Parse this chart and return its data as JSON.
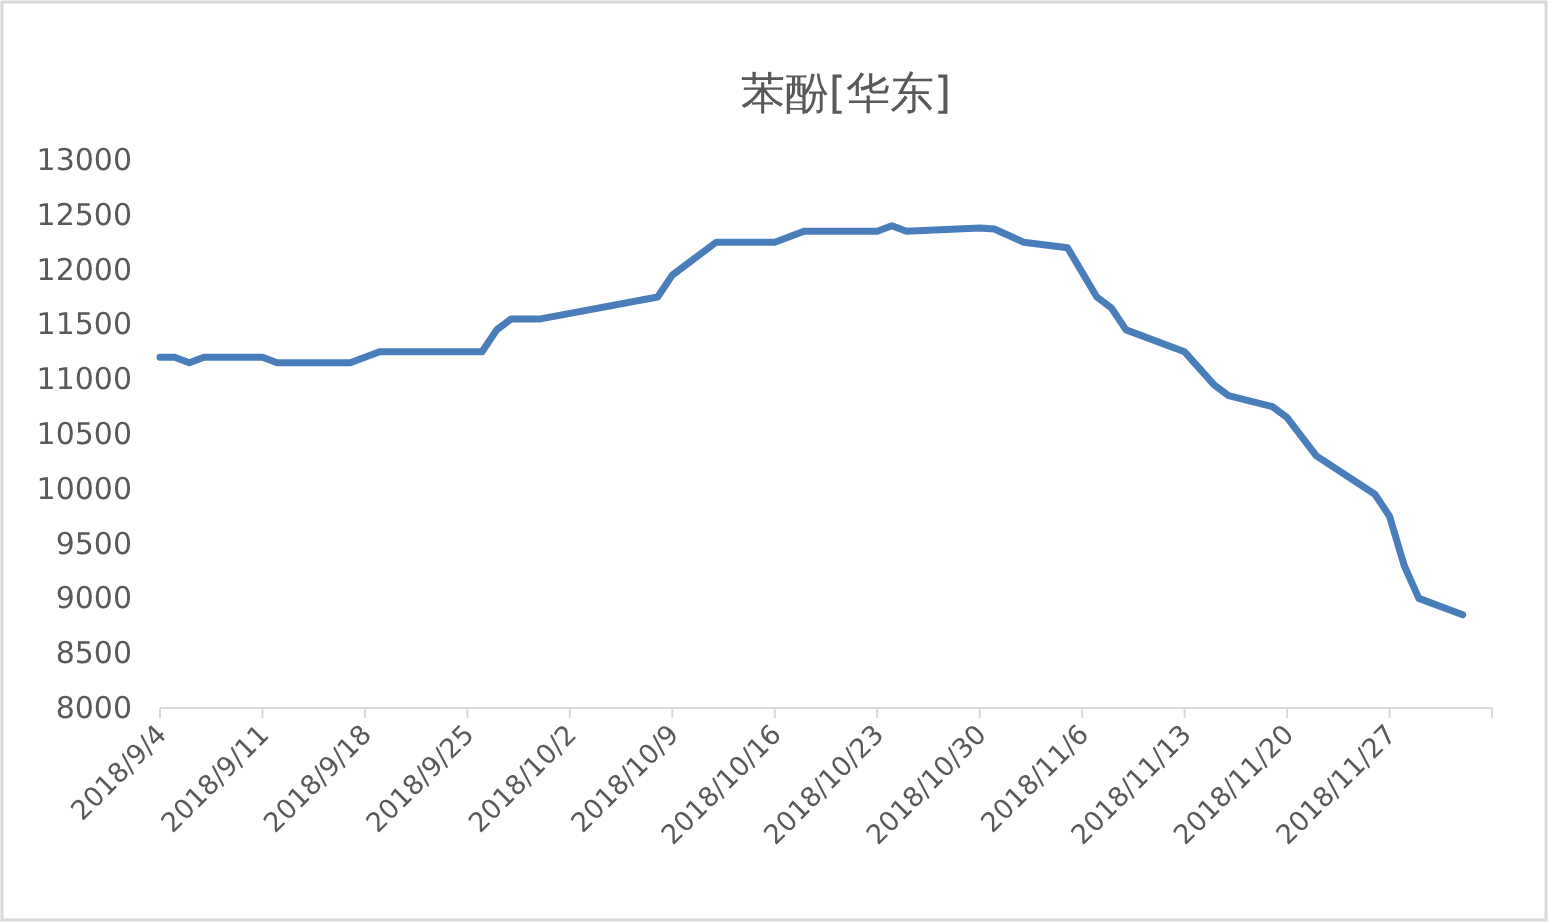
{
  "chart_data": {
    "type": "line",
    "title": "苯酚[华东]",
    "x": [
      "2018-09-04",
      "2018-09-05",
      "2018-09-06",
      "2018-09-07",
      "2018-09-11",
      "2018-09-12",
      "2018-09-17",
      "2018-09-19",
      "2018-09-26",
      "2018-09-27",
      "2018-09-28",
      "2018-09-30",
      "2018-10-08",
      "2018-10-09",
      "2018-10-10",
      "2018-10-12",
      "2018-10-16",
      "2018-10-18",
      "2018-10-23",
      "2018-10-24",
      "2018-10-25",
      "2018-10-30",
      "2018-10-31",
      "2018-11-02",
      "2018-11-05",
      "2018-11-07",
      "2018-11-08",
      "2018-11-09",
      "2018-11-13",
      "2018-11-15",
      "2018-11-16",
      "2018-11-19",
      "2018-11-20",
      "2018-11-22",
      "2018-11-26",
      "2018-11-27",
      "2018-11-28",
      "2018-11-29",
      "2018-12-02"
    ],
    "values": [
      11200,
      11200,
      11150,
      11200,
      11200,
      11150,
      11150,
      11250,
      11250,
      11450,
      11550,
      11550,
      11750,
      11950,
      12050,
      12250,
      12250,
      12350,
      12350,
      12400,
      12350,
      12380,
      12370,
      12250,
      12200,
      11750,
      11650,
      11450,
      11250,
      10950,
      10850,
      10750,
      10650,
      10300,
      9950,
      9750,
      9300,
      9000,
      8850
    ],
    "color": "#4a7ebb",
    "xlim": [
      "2018-09-04",
      "2018-12-04"
    ],
    "xticks": [
      {
        "value": "2018-09-04",
        "label": "2018/9/4"
      },
      {
        "value": "2018-09-11",
        "label": "2018/9/11"
      },
      {
        "value": "2018-09-18",
        "label": "2018/9/18"
      },
      {
        "value": "2018-09-25",
        "label": "2018/9/25"
      },
      {
        "value": "2018-10-02",
        "label": "2018/10/2"
      },
      {
        "value": "2018-10-09",
        "label": "2018/10/9"
      },
      {
        "value": "2018-10-16",
        "label": "2018/10/16"
      },
      {
        "value": "2018-10-23",
        "label": "2018/10/23"
      },
      {
        "value": "2018-10-30",
        "label": "2018/10/30"
      },
      {
        "value": "2018-11-06",
        "label": "2018/11/6"
      },
      {
        "value": "2018-11-13",
        "label": "2018/11/13"
      },
      {
        "value": "2018-11-20",
        "label": "2018/11/20"
      },
      {
        "value": "2018-11-27",
        "label": "2018/11/27"
      },
      {
        "value": "2018-12-04",
        "label": null
      }
    ],
    "ylim": [
      8000,
      13000
    ],
    "yticks": [
      8000,
      8500,
      9000,
      9500,
      10000,
      10500,
      11000,
      11500,
      12000,
      12500,
      13000
    ],
    "line_style": "solid",
    "grid": false
  }
}
